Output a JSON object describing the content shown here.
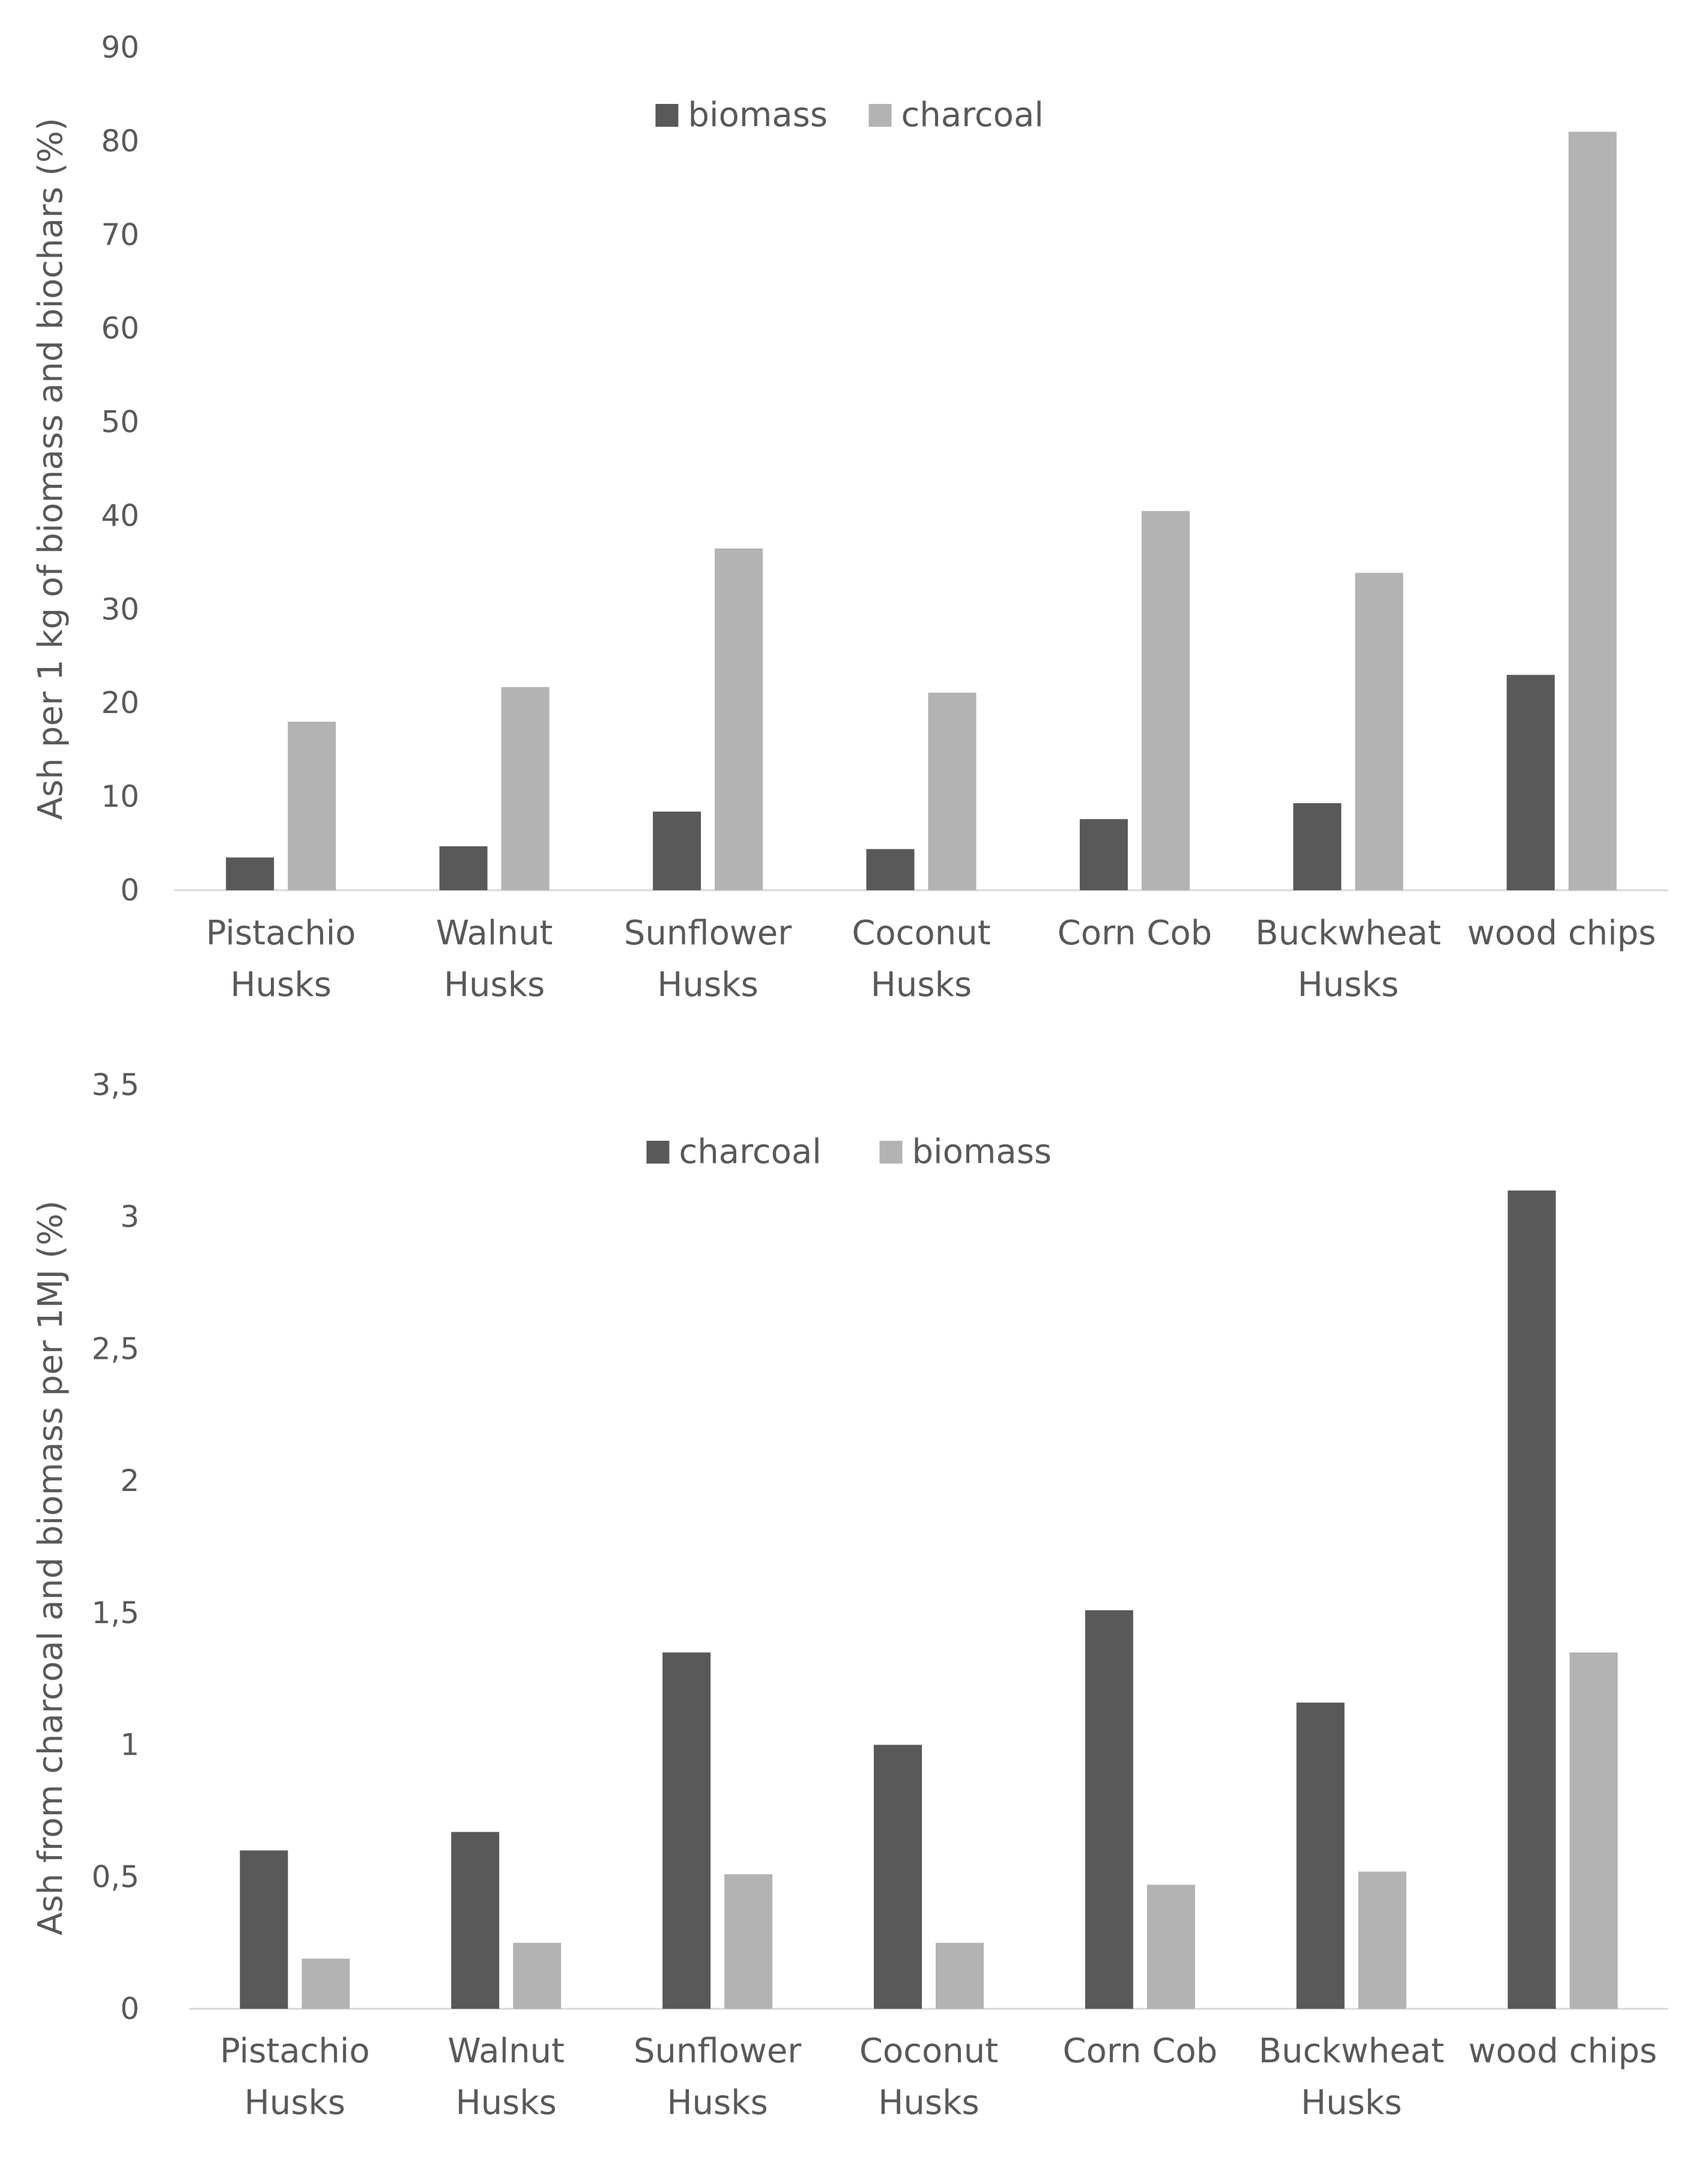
{
  "chart_data": [
    {
      "type": "bar",
      "title": "",
      "xlabel": "",
      "ylabel": "Ash per 1 kg of biomass and biochars (%)",
      "ylim": [
        0,
        90
      ],
      "yticks": [
        "0",
        "10",
        "20",
        "30",
        "40",
        "50",
        "60",
        "70",
        "80",
        "90"
      ],
      "ytick_values": [
        0,
        10,
        20,
        30,
        40,
        50,
        60,
        70,
        80,
        90
      ],
      "grid": false,
      "legend_position": "top-center",
      "categories": [
        [
          "Pistachio",
          "Husks"
        ],
        [
          "Walnut",
          "Husks"
        ],
        [
          "Sunflower",
          "Husks"
        ],
        [
          "Coconut",
          "Husks"
        ],
        [
          "Corn Cob"
        ],
        [
          "Buckwheat",
          "Husks"
        ],
        [
          "wood chips"
        ]
      ],
      "series": [
        {
          "name": "biomass",
          "color": "#595959",
          "values": [
            3.5,
            4.7,
            8.4,
            4.4,
            7.6,
            9.3,
            23.0
          ]
        },
        {
          "name": "charcoal",
          "color": "#b3b3b3",
          "values": [
            18.0,
            21.7,
            36.5,
            21.1,
            40.5,
            33.9,
            81.0
          ]
        }
      ]
    },
    {
      "type": "bar",
      "title": "",
      "xlabel": "",
      "ylabel": "Ash from  charcoal  and biomass per 1MJ (%)",
      "ylim": [
        0,
        3.5
      ],
      "yticks": [
        "0",
        "0,5",
        "1",
        "1,5",
        "2",
        "2,5",
        "3",
        "3,5"
      ],
      "ytick_values": [
        0,
        0.5,
        1,
        1.5,
        2,
        2.5,
        3,
        3.5
      ],
      "grid": false,
      "legend_position": "top-center",
      "categories": [
        [
          "Pistachio",
          "Husks"
        ],
        [
          "Walnut",
          "Husks"
        ],
        [
          "Sunflower",
          "Husks"
        ],
        [
          "Coconut",
          "Husks"
        ],
        [
          "Corn Cob"
        ],
        [
          "Buckwheat",
          "Husks"
        ],
        [
          "wood chips"
        ]
      ],
      "series": [
        {
          "name": "charcoal",
          "color": "#595959",
          "values": [
            0.6,
            0.67,
            1.35,
            1.0,
            1.51,
            1.16,
            3.1
          ]
        },
        {
          "name": "biomass",
          "color": "#b3b3b3",
          "values": [
            0.19,
            0.25,
            0.51,
            0.25,
            0.47,
            0.52,
            1.35
          ]
        }
      ]
    }
  ]
}
